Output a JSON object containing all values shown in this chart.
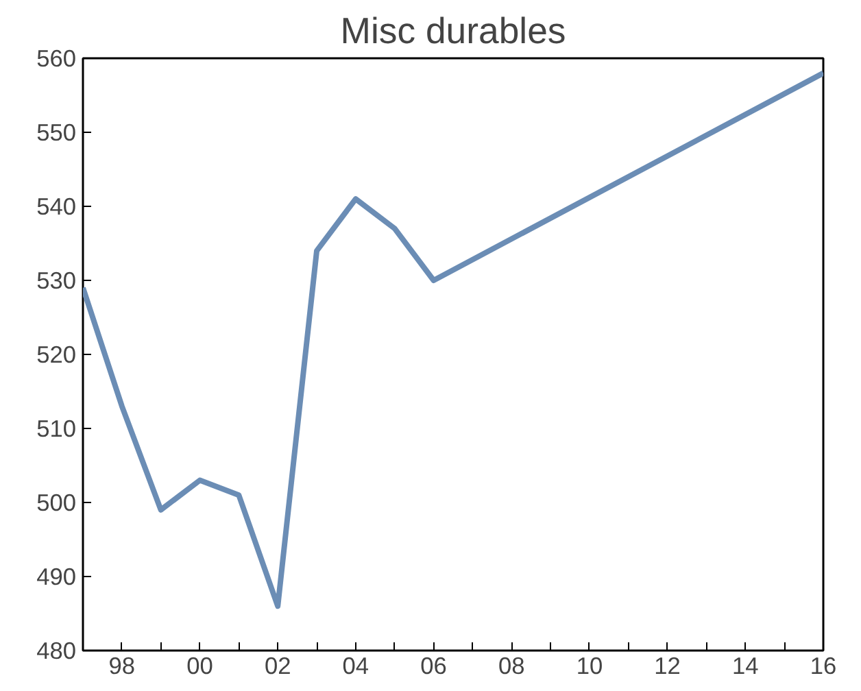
{
  "chart_data": {
    "type": "line",
    "title": "Misc durables",
    "x": [
      1997,
      1998,
      1999,
      2000,
      2001,
      2002,
      2003,
      2004,
      2005,
      2006,
      2016
    ],
    "series": [
      {
        "color": "#6b8db5",
        "values": [
          529,
          513,
          499,
          503,
          501,
          486,
          534,
          541,
          537,
          530,
          558
        ]
      }
    ],
    "xlim": [
      1997,
      2016
    ],
    "xticks": [
      {
        "value": 1998,
        "label": "98"
      },
      {
        "value": 1999,
        "label": null
      },
      {
        "value": 2000,
        "label": "00"
      },
      {
        "value": 2001,
        "label": null
      },
      {
        "value": 2002,
        "label": "02"
      },
      {
        "value": 2003,
        "label": null
      },
      {
        "value": 2004,
        "label": "04"
      },
      {
        "value": 2005,
        "label": null
      },
      {
        "value": 2006,
        "label": "06"
      },
      {
        "value": 2007,
        "label": null
      },
      {
        "value": 2008,
        "label": "08"
      },
      {
        "value": 2009,
        "label": null
      },
      {
        "value": 2010,
        "label": "10"
      },
      {
        "value": 2011,
        "label": null
      },
      {
        "value": 2012,
        "label": "12"
      },
      {
        "value": 2013,
        "label": null
      },
      {
        "value": 2014,
        "label": "14"
      },
      {
        "value": 2015,
        "label": null
      },
      {
        "value": 2016,
        "label": "16"
      }
    ],
    "ylim": [
      480,
      560
    ],
    "yticks": [
      480,
      490,
      500,
      510,
      520,
      530,
      540,
      550,
      560
    ],
    "grid": false,
    "line_style": "solid"
  }
}
